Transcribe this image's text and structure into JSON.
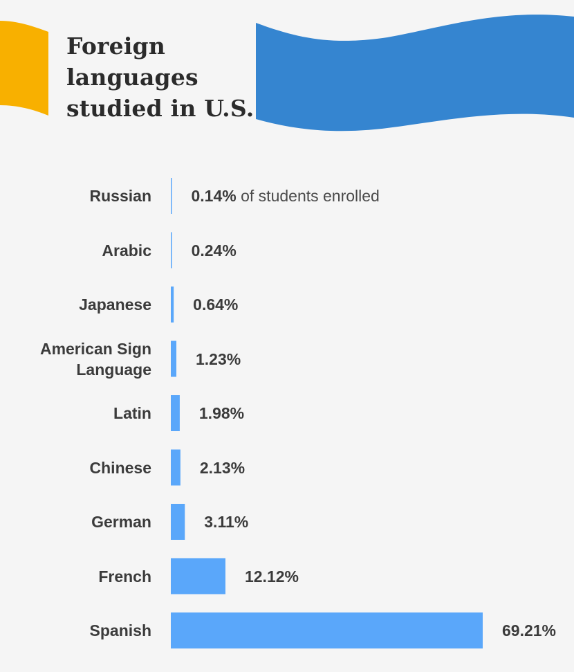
{
  "title": "Foreign languages studied in U.S.",
  "colors": {
    "background": "#f5f5f5",
    "bar": "#5aa7fa",
    "flag_yellow": "#f8b000",
    "flag_blue": "#3585d0",
    "text": "#3b3b3b"
  },
  "chart_data": {
    "type": "bar",
    "orientation": "horizontal",
    "title": "Foreign languages studied in U.S.",
    "categories": [
      "Russian",
      "Arabic",
      "Japanese",
      "American Sign Language",
      "Latin",
      "Chinese",
      "German",
      "French",
      "Spanish"
    ],
    "values": [
      0.14,
      0.24,
      0.64,
      1.23,
      1.98,
      2.13,
      3.11,
      12.12,
      69.21
    ],
    "value_labels": [
      "0.14%",
      "0.24%",
      "0.64%",
      "1.23%",
      "1.98%",
      "2.13%",
      "3.11%",
      "12.12%",
      "69.21%"
    ],
    "first_value_suffix": " of students enrolled",
    "unit": "%",
    "grid": false,
    "legend": "none"
  }
}
